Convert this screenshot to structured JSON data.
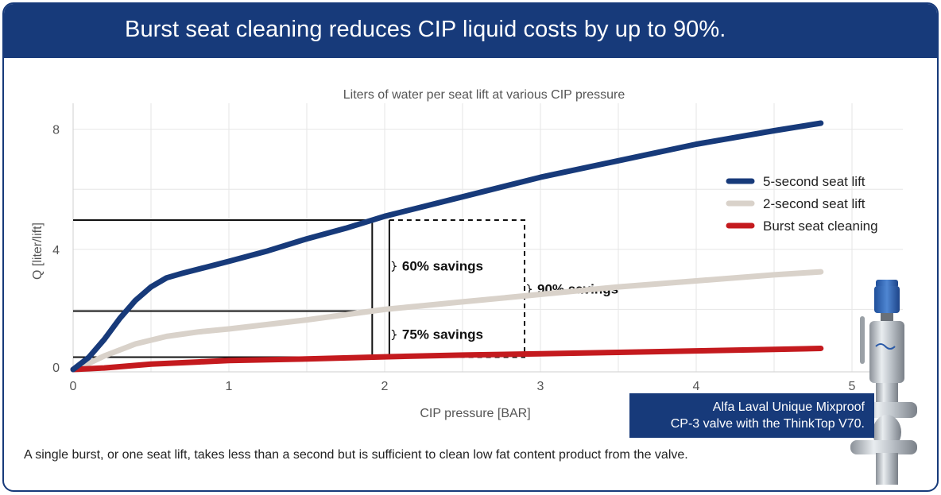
{
  "header": {
    "title": "Burst seat cleaning reduces CIP liquid costs by up to 90%."
  },
  "chart_data": {
    "type": "line",
    "title": "Liters of water per seat lift at various CIP pressure",
    "xlabel": "CIP pressure [BAR]",
    "ylabel": "Q [liter/lift]",
    "xlim": [
      0,
      5.3
    ],
    "ylim": [
      0,
      8.6
    ],
    "xticks": [
      0,
      1,
      2,
      3,
      4,
      5
    ],
    "yticks": [
      0,
      4,
      8
    ],
    "grid": true,
    "legend_position": "right",
    "series": [
      {
        "name": "5-second seat lift",
        "color": "#173a7a",
        "x": [
          0,
          0.1,
          0.2,
          0.3,
          0.4,
          0.5,
          0.6,
          0.7,
          0.85,
          1.0,
          1.25,
          1.5,
          1.75,
          2.0,
          2.5,
          3.0,
          3.5,
          4.0,
          4.5,
          4.8
        ],
        "y": [
          0,
          0.4,
          1.0,
          1.7,
          2.3,
          2.75,
          3.05,
          3.2,
          3.4,
          3.6,
          3.95,
          4.35,
          4.7,
          5.1,
          5.75,
          6.4,
          6.95,
          7.5,
          7.95,
          8.2
        ]
      },
      {
        "name": "2-second seat lift",
        "color": "#d9d2ca",
        "x": [
          0,
          0.1,
          0.2,
          0.4,
          0.6,
          0.8,
          1.0,
          1.5,
          2.0,
          2.5,
          3.0,
          3.5,
          4.0,
          4.5,
          4.8
        ],
        "y": [
          0,
          0.2,
          0.45,
          0.85,
          1.1,
          1.25,
          1.35,
          1.65,
          2.0,
          2.25,
          2.5,
          2.75,
          2.95,
          3.15,
          3.25
        ]
      },
      {
        "name": "Burst seat cleaning",
        "color": "#c41a1e",
        "x": [
          0,
          0.2,
          0.5,
          0.8,
          1.0,
          1.5,
          2.0,
          2.5,
          3.0,
          3.5,
          4.0,
          4.5,
          4.8
        ],
        "y": [
          0,
          0.05,
          0.18,
          0.25,
          0.3,
          0.35,
          0.42,
          0.48,
          0.52,
          0.57,
          0.62,
          0.67,
          0.7
        ]
      }
    ],
    "annotations": [
      {
        "text": "60% savings"
      },
      {
        "text": "75% savings"
      },
      {
        "text": "90% savings"
      }
    ]
  },
  "caption": "A single burst, or one seat lift, takes less than a second but is sufficient to clean low fat content product from the valve.",
  "product": {
    "line1": "Alfa Laval Unique Mixproof",
    "line2": "CP-3 valve with the ThinkTop V70."
  }
}
